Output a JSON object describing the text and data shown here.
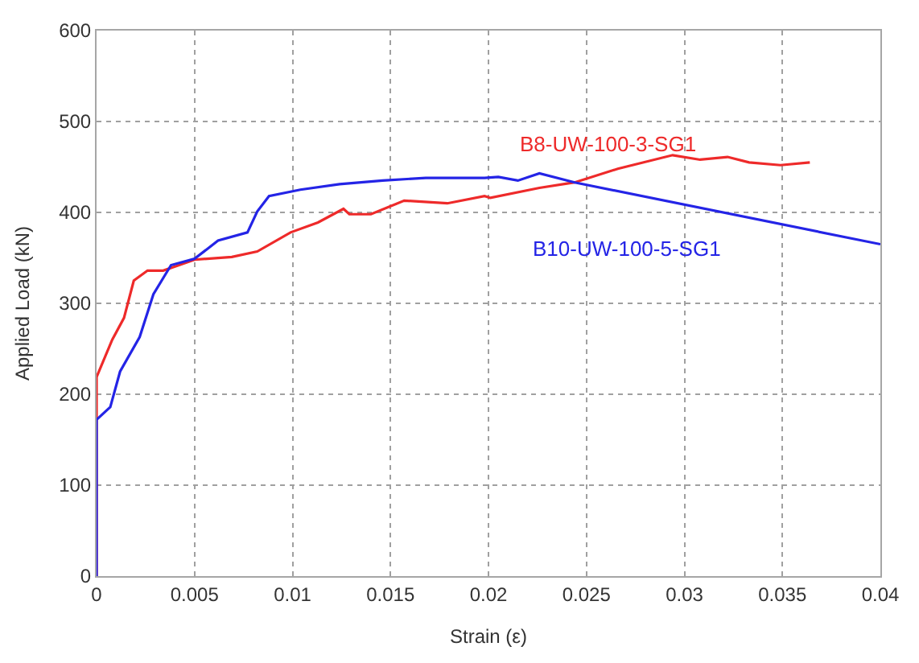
{
  "chart_data": {
    "type": "line",
    "xlabel": "Strain (ε)",
    "ylabel": "Applied Load (kN)",
    "xlim": [
      0,
      0.04
    ],
    "ylim": [
      0,
      600
    ],
    "xticks": [
      0,
      0.005,
      0.01,
      0.015,
      0.02,
      0.025,
      0.03,
      0.035,
      0.04
    ],
    "yticks": [
      0,
      100,
      200,
      300,
      400,
      500,
      600
    ],
    "grid": true,
    "legend": false,
    "line_style": "solid",
    "marker": "none",
    "series": [
      {
        "name": "B8-UW-100-3-SG1",
        "color": "#ee2a2a",
        "x": [
          0,
          0,
          0.0008,
          0.0014,
          0.0019,
          0.0026,
          0.0034,
          0.005,
          0.0069,
          0.0082,
          0.0099,
          0.0113,
          0.0126,
          0.0129,
          0.014,
          0.0157,
          0.0179,
          0.0198,
          0.0201,
          0.0226,
          0.0244,
          0.0266,
          0.0294,
          0.0308,
          0.0322,
          0.0333,
          0.0349,
          0.0364
        ],
        "values": [
          0,
          219,
          260,
          284,
          325,
          336,
          336,
          348,
          351,
          357,
          378,
          389,
          404,
          398,
          398,
          413,
          410,
          418,
          416,
          427,
          433,
          448,
          463,
          458,
          461,
          455,
          452,
          455
        ]
      },
      {
        "name": "B10-UW-100-5-SG1",
        "color": "#2424e6",
        "x": [
          0,
          0,
          0.0007,
          0.0012,
          0.0022,
          0.0029,
          0.0038,
          0.005,
          0.0062,
          0.0077,
          0.0082,
          0.0088,
          0.0104,
          0.0124,
          0.0146,
          0.0168,
          0.0198,
          0.0205,
          0.0215,
          0.0226,
          0.0244,
          0.04
        ],
        "values": [
          0,
          172,
          186,
          225,
          263,
          310,
          342,
          349,
          369,
          378,
          401,
          418,
          425,
          431,
          435,
          438,
          438,
          439,
          435,
          443,
          433,
          365
        ]
      }
    ]
  }
}
